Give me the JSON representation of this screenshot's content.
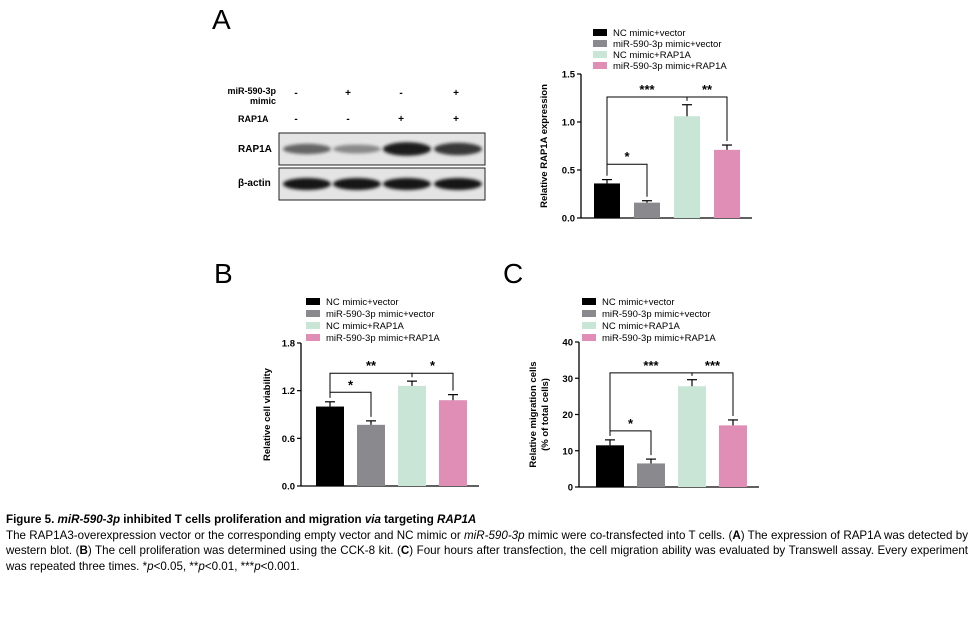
{
  "panels": {
    "A": "A",
    "B": "B",
    "C": "C"
  },
  "blot": {
    "mimic_label_line1": "miR-590-3p",
    "mimic_label_line2": "mimic",
    "rap_label": "RAP1A",
    "mimic_signs": [
      "-",
      "+",
      "-",
      "+"
    ],
    "rap_signs": [
      "-",
      "-",
      "+",
      "+"
    ],
    "band_rap1a": "RAP1A",
    "band_actin": "β-actin",
    "rap1a_intensity": [
      0.55,
      0.35,
      0.95,
      0.8
    ]
  },
  "chart_data": [
    {
      "type": "bar",
      "panel": "A",
      "categories": [
        "NC mimic+vector",
        "miR-590-3p mimic+vector",
        "NC mimic+RAP1A",
        "miR-590-3p mimic+RAP1A"
      ],
      "values": [
        0.36,
        0.16,
        1.06,
        0.71
      ],
      "errors": [
        0.04,
        0.02,
        0.12,
        0.05
      ],
      "colors": [
        "#000000",
        "#8a8a8e",
        "#c8e5d6",
        "#e08eb5"
      ],
      "ylabel": "Relative RAP1A expression",
      "ylim": [
        0,
        1.5
      ],
      "yticks": [
        "0.0",
        "0.5",
        "1.0",
        "1.5"
      ],
      "yticks_values": [
        0,
        0.5,
        1.0,
        1.5
      ],
      "significance": [
        {
          "from": 0,
          "to": 1,
          "label": "*",
          "y": 0.56
        },
        {
          "from": 0,
          "to": 2,
          "label": "***",
          "y": 1.26
        },
        {
          "from": 2,
          "to": 3,
          "label": "**",
          "y": 1.26
        }
      ]
    },
    {
      "type": "bar",
      "panel": "B",
      "categories": [
        "NC mimic+vector",
        "miR-590-3p mimic+vector",
        "NC mimic+RAP1A",
        "miR-590-3p mimic+RAP1A"
      ],
      "values": [
        1.0,
        0.77,
        1.26,
        1.08
      ],
      "errors": [
        0.06,
        0.05,
        0.06,
        0.07
      ],
      "colors": [
        "#000000",
        "#8a8a8e",
        "#c8e5d6",
        "#e08eb5"
      ],
      "ylabel": "Relative cell viability",
      "ylim": [
        0,
        1.8
      ],
      "yticks": [
        "0.0",
        "0.6",
        "1.2",
        "1.8"
      ],
      "yticks_values": [
        0,
        0.6,
        1.2,
        1.8
      ],
      "significance": [
        {
          "from": 0,
          "to": 1,
          "label": "*",
          "y": 1.18
        },
        {
          "from": 0,
          "to": 2,
          "label": "**",
          "y": 1.42
        },
        {
          "from": 2,
          "to": 3,
          "label": "*",
          "y": 1.42
        }
      ]
    },
    {
      "type": "bar",
      "panel": "C",
      "categories": [
        "NC mimic+vector",
        "miR-590-3p mimic+vector",
        "NC mimic+RAP1A",
        "miR-590-3p mimic+RAP1A"
      ],
      "values": [
        11.5,
        6.5,
        27.8,
        17.0
      ],
      "errors": [
        1.5,
        1.2,
        1.8,
        1.5
      ],
      "colors": [
        "#000000",
        "#8a8a8e",
        "#c8e5d6",
        "#e08eb5"
      ],
      "ylabel_line1": "Relative migration cells",
      "ylabel_line2": "(% of total cells)",
      "ylim": [
        0,
        40
      ],
      "yticks": [
        "0",
        "10",
        "20",
        "30",
        "40"
      ],
      "yticks_values": [
        0,
        10,
        20,
        30,
        40
      ],
      "significance": [
        {
          "from": 0,
          "to": 1,
          "label": "*",
          "y": 15.5
        },
        {
          "from": 0,
          "to": 2,
          "label": "***",
          "y": 31.5
        },
        {
          "from": 2,
          "to": 3,
          "label": "***",
          "y": 31.5
        }
      ]
    }
  ],
  "caption": {
    "fig_label": "Figure 5. ",
    "title_it1": "miR-590-3p",
    "title_mid": " inhibited T cells proliferation and migration ",
    "title_it2": "via",
    "title_mid2": " targeting ",
    "title_it3": "RAP1A",
    "p1": "The RAP1A3-overexpression vector or the corresponding empty vector and NC mimic or ",
    "p1_it": "miR-590-3p",
    "p2": " mimic were co-transfected into T cells. (",
    "pA": "A",
    "p3": ") The expression of RAP1A was detected by western blot. (",
    "pB": "B",
    "p4": ") The cell proliferation was determined using the CCK-8 kit. (",
    "pC": "C",
    "p5": ") Four hours after transfection, the cell migration ability was evaluated by Transwell assay. Every experiment was repeated three times. *",
    "pvar1": "p",
    "p6": "<0.05, **",
    "pvar2": "p",
    "p7": "<0.01, ***",
    "pvar3": "p",
    "p8": "<0.001."
  }
}
